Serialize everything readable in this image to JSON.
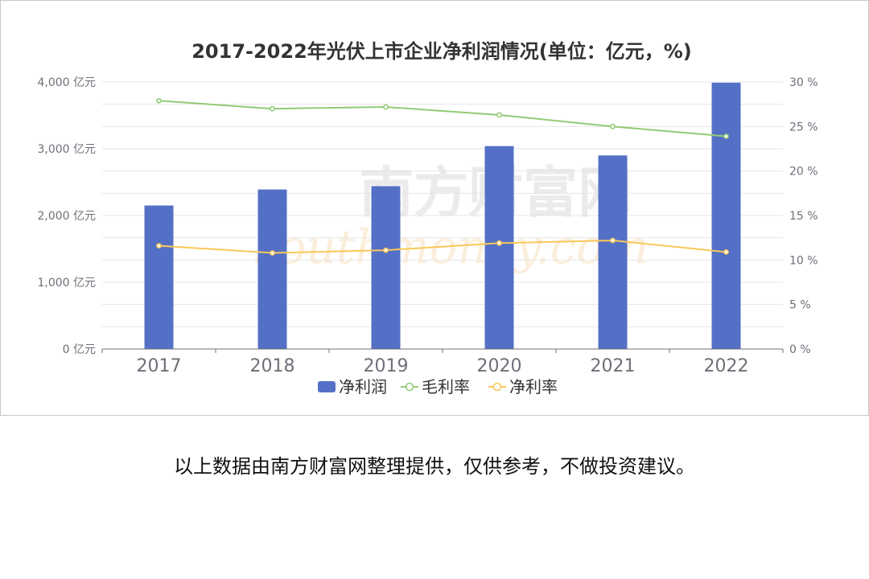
{
  "colors": {
    "bar": "#5470c6",
    "gross_margin_line": "#91cc75",
    "net_margin_line": "#fac858",
    "grid": "#e6e6e6",
    "axis": "#6e7079",
    "title": "#333333",
    "watermark": "#d9d9d9",
    "watermark_accent": "#f3c98b"
  },
  "chart_data": {
    "type": "bar",
    "title": "2017-2022年光伏上市企业净利润情况(单位：亿元，%)",
    "categories": [
      "2017",
      "2018",
      "2019",
      "2020",
      "2021",
      "2022"
    ],
    "series": [
      {
        "name": "净利润",
        "type": "bar",
        "axis": "left",
        "values": [
          2150,
          2390,
          2440,
          3040,
          2900,
          3990
        ]
      },
      {
        "name": "毛利率",
        "type": "line",
        "axis": "right",
        "values": [
          27.9,
          27.0,
          27.2,
          26.3,
          25.0,
          23.9
        ]
      },
      {
        "name": "净利率",
        "type": "line",
        "axis": "right",
        "values": [
          11.6,
          10.8,
          11.1,
          11.9,
          12.2,
          10.9
        ]
      }
    ],
    "y_left": {
      "min": 0,
      "max": 4000,
      "ticks": [
        "0 亿元",
        "1,000 亿元",
        "2,000 亿元",
        "3,000 亿元",
        "4,000 亿元"
      ]
    },
    "y_right": {
      "min": 0,
      "max": 30,
      "ticks": [
        "0 %",
        "5 %",
        "10 %",
        "15 %",
        "20 %",
        "25 %",
        "30 %"
      ]
    },
    "grid": true,
    "legend_position": "bottom"
  },
  "watermark": {
    "text_cn": "南方财富网",
    "text_en": "southmoney.com"
  },
  "footnote": "以上数据由南方财富网整理提供，仅供参考，不做投资建议。"
}
